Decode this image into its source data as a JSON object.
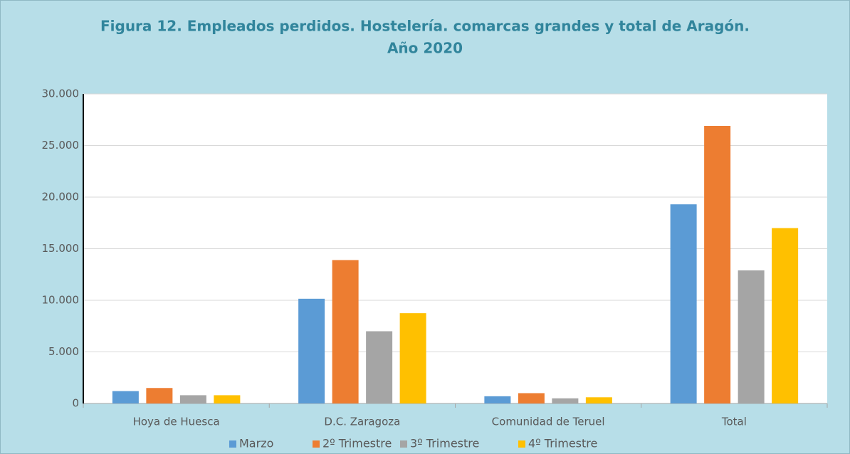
{
  "chart_data": {
    "type": "bar",
    "title": [
      "Figura 12. Empleados perdidos. Hostelería. comarcas grandes y total de Aragón.",
      "Año 2020"
    ],
    "categories": [
      "Hoya de Huesca",
      "D.C. Zaragoza",
      "Comunidad de Teruel",
      "Total"
    ],
    "series": [
      {
        "name": "Marzo",
        "color": "#5b9bd5",
        "values": [
          1200,
          10150,
          700,
          19300
        ]
      },
      {
        "name": "2º Trimestre",
        "color": "#ed7d31",
        "values": [
          1500,
          13900,
          1000,
          26900
        ]
      },
      {
        "name": "3º Trimestre",
        "color": "#a5a5a5",
        "values": [
          800,
          7000,
          500,
          12900
        ]
      },
      {
        "name": "4º Trimestre",
        "color": "#ffc000",
        "values": [
          800,
          8750,
          600,
          17000
        ]
      }
    ],
    "ylim": [
      0,
      30000
    ],
    "yticks": [
      0,
      {
        "value": 5000,
        "label": "5.000"
      },
      {
        "value": 10000,
        "label": "10.000"
      },
      {
        "value": 15000,
        "label": "15.000"
      },
      {
        "value": 20000,
        "label": "20.000"
      },
      {
        "value": 25000,
        "label": "25.000"
      },
      {
        "value": 30000,
        "label": "30.000"
      }
    ],
    "grid": true,
    "legend": "bottom"
  }
}
